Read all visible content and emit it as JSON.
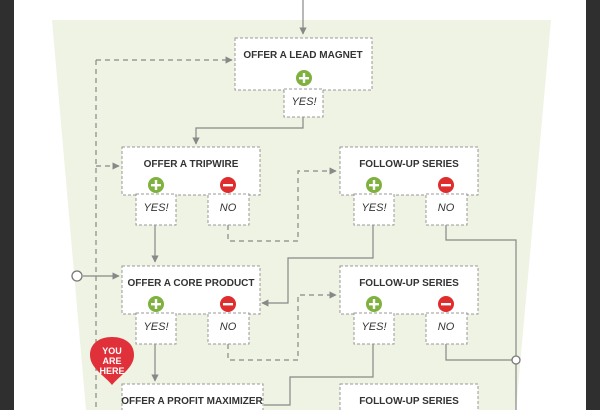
{
  "colors": {
    "funnel": "#eef3e3",
    "yes": "#7fb13f",
    "no": "#df2d2d",
    "badge": "#e0313a",
    "line": "#888888",
    "frame": "#2f2f2f"
  },
  "steps": {
    "lead_magnet": {
      "title": "OFFER A LEAD MAGNET",
      "yes": "YES!"
    },
    "tripwire": {
      "title": "OFFER A TRIPWIRE",
      "yes": "YES!",
      "no": "NO"
    },
    "followup_1": {
      "title": "FOLLOW-UP SERIES",
      "yes": "YES!",
      "no": "NO"
    },
    "core_product": {
      "title": "OFFER A CORE PRODUCT",
      "yes": "YES!",
      "no": "NO"
    },
    "followup_2": {
      "title": "FOLLOW-UP SERIES",
      "yes": "YES!",
      "no": "NO"
    },
    "profit_maximizer": {
      "title": "OFFER A PROFIT MAXIMIZER"
    },
    "followup_3": {
      "title": "FOLLOW-UP SERIES"
    }
  },
  "badge": {
    "line1": "YOU",
    "line2": "ARE",
    "line3": "HERE"
  },
  "icons": {
    "yes": "plus-circle-icon",
    "no": "minus-circle-icon"
  }
}
